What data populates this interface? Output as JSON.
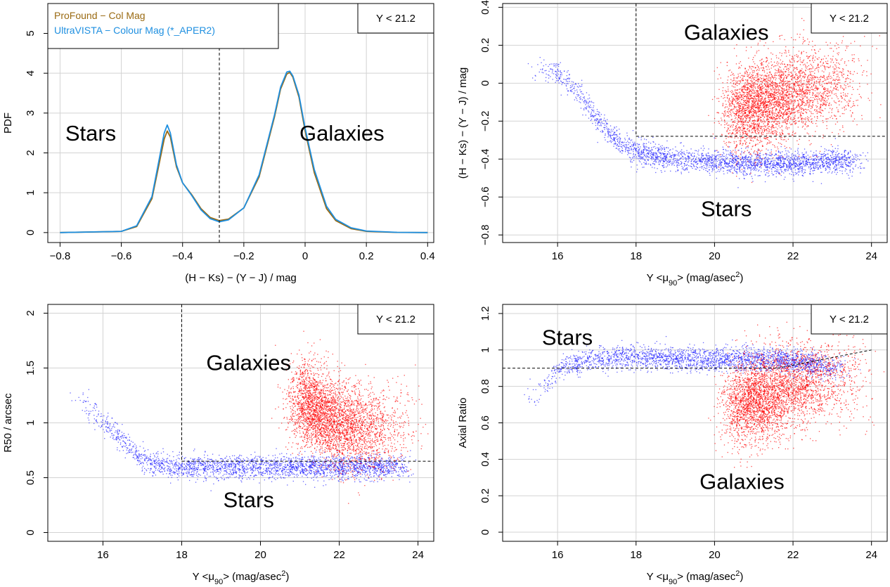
{
  "chart_data": [
    {
      "type": "line",
      "xlabel": "(H − Ks) − (Y − J) / mag",
      "ylabel": "PDF",
      "xlim": [
        -0.84,
        0.42
      ],
      "ylim": [
        -0.25,
        5.75
      ],
      "xticks": [
        -0.8,
        -0.6,
        -0.4,
        -0.2,
        0,
        0.2,
        0.4
      ],
      "yticks": [
        0,
        1,
        2,
        3,
        4,
        5
      ],
      "xtick_labels": [
        "−0.8",
        "−0.6",
        "−0.4",
        "−0.2",
        "0",
        "0.2",
        "0.4"
      ],
      "ytick_labels": [
        "0",
        "1",
        "2",
        "3",
        "4",
        "5"
      ],
      "grid": true,
      "legend": "top-left",
      "condition": "Y < 21.2",
      "cut_x": -0.28,
      "regions": [
        {
          "label": "Stars",
          "x": -0.7,
          "y": 2.5
        },
        {
          "label": "Galaxies",
          "x": 0.12,
          "y": 2.5
        }
      ],
      "series": [
        {
          "name": "ProFound − Col Mag",
          "color": "#9a6a12",
          "x": [
            -0.8,
            -0.6,
            -0.55,
            -0.5,
            -0.48,
            -0.46,
            -0.45,
            -0.44,
            -0.42,
            -0.4,
            -0.37,
            -0.34,
            -0.31,
            -0.28,
            -0.25,
            -0.2,
            -0.15,
            -0.1,
            -0.08,
            -0.06,
            -0.05,
            -0.04,
            -0.02,
            0,
            0.03,
            0.07,
            0.1,
            0.15,
            0.2,
            0.3,
            0.4
          ],
          "y": [
            0,
            0.03,
            0.15,
            0.85,
            1.6,
            2.35,
            2.55,
            2.4,
            1.65,
            1.25,
            0.95,
            0.6,
            0.38,
            0.3,
            0.34,
            0.62,
            1.4,
            2.9,
            3.6,
            3.98,
            4.02,
            3.9,
            3.4,
            2.55,
            1.5,
            0.6,
            0.3,
            0.1,
            0.03,
            0.005,
            0
          ]
        },
        {
          "name": "UltraVISTA − Colour Mag (*_APER2)",
          "color": "#1e8fe0",
          "x": [
            -0.8,
            -0.6,
            -0.55,
            -0.5,
            -0.48,
            -0.46,
            -0.45,
            -0.44,
            -0.42,
            -0.4,
            -0.37,
            -0.34,
            -0.31,
            -0.28,
            -0.25,
            -0.2,
            -0.15,
            -0.1,
            -0.08,
            -0.06,
            -0.05,
            -0.04,
            -0.02,
            0,
            0.03,
            0.07,
            0.1,
            0.15,
            0.2,
            0.3,
            0.4
          ],
          "y": [
            0,
            0.03,
            0.17,
            0.9,
            1.7,
            2.5,
            2.7,
            2.5,
            1.7,
            1.25,
            0.93,
            0.57,
            0.35,
            0.27,
            0.32,
            0.62,
            1.45,
            2.95,
            3.65,
            4.03,
            4.05,
            3.93,
            3.45,
            2.62,
            1.58,
            0.66,
            0.33,
            0.12,
            0.04,
            0.006,
            0
          ]
        }
      ]
    },
    {
      "type": "scatter",
      "xlabel": "Y <μ90> (mag/asec2)",
      "ylabel": "(H − Ks) − (Y − J) / mag",
      "xlim": [
        14.6,
        24.4
      ],
      "ylim": [
        -0.84,
        0.42
      ],
      "xticks": [
        16,
        18,
        20,
        22,
        24
      ],
      "yticks": [
        -0.8,
        -0.6,
        -0.4,
        -0.2,
        0,
        0.2,
        0.4
      ],
      "xtick_labels": [
        "16",
        "18",
        "20",
        "22",
        "24"
      ],
      "ytick_labels": [
        "−0.8",
        "−0.6",
        "−0.4",
        "−0.2",
        "0",
        "0.2",
        "0.4"
      ],
      "grid": true,
      "condition": "Y < 21.2",
      "cuts": {
        "vertical_x": 18,
        "horizontal_y": -0.28
      },
      "regions": [
        {
          "label": "Galaxies",
          "x": 20.3,
          "y": 0.27
        },
        {
          "label": "Stars",
          "x": 20.3,
          "y": -0.66
        }
      ],
      "series": [
        {
          "name": "",
          "color": "#2020ff",
          "points": [
            [
              15.5,
              0.08
            ],
            [
              16,
              0.05
            ],
            [
              16.5,
              -0.05
            ],
            [
              17,
              -0.18
            ],
            [
              17.5,
              -0.3
            ],
            [
              18,
              -0.36
            ],
            [
              19,
              -0.4
            ],
            [
              20,
              -0.41
            ],
            [
              21,
              -0.42
            ],
            [
              22,
              -0.42
            ],
            [
              23,
              -0.41
            ],
            [
              23.5,
              -0.41
            ]
          ]
        },
        {
          "name": "",
          "color": "#ff0000",
          "points": [
            [
              20.5,
              -0.15
            ],
            [
              21.5,
              -0.08
            ],
            [
              22,
              -0.04
            ],
            [
              22.5,
              -0.02
            ],
            [
              23,
              -0.01
            ],
            [
              23.5,
              0
            ],
            [
              24,
              0.01
            ]
          ]
        }
      ]
    },
    {
      "type": "scatter",
      "xlabel": "Y <μ90> (mag/asec2)",
      "ylabel": "R50 / arcsec",
      "xlim": [
        14.6,
        24.4
      ],
      "ylim": [
        -0.08,
        2.08
      ],
      "xticks": [
        16,
        18,
        20,
        22,
        24
      ],
      "yticks": [
        0,
        0.5,
        1,
        1.5,
        2
      ],
      "xtick_labels": [
        "16",
        "18",
        "20",
        "22",
        "24"
      ],
      "ytick_labels": [
        "0",
        "0.5",
        "1",
        "1.5",
        "2"
      ],
      "grid": true,
      "condition": "Y < 21.2",
      "cuts": {
        "vertical_x": 18,
        "horizontal_y": 0.65
      },
      "regions": [
        {
          "label": "Galaxies",
          "x": 19.7,
          "y": 1.55
        },
        {
          "label": "Stars",
          "x": 19.7,
          "y": 0.3
        }
      ],
      "series": [
        {
          "name": "",
          "color": "#2020ff",
          "points": [
            [
              15.5,
              1.2
            ],
            [
              16,
              1.0
            ],
            [
              16.5,
              0.85
            ],
            [
              17,
              0.65
            ],
            [
              17.5,
              0.62
            ],
            [
              18,
              0.6
            ],
            [
              19,
              0.6
            ],
            [
              20,
              0.6
            ],
            [
              21,
              0.6
            ],
            [
              22,
              0.6
            ],
            [
              23,
              0.6
            ],
            [
              23.5,
              0.6
            ]
          ]
        },
        {
          "name": "",
          "color": "#ff0000",
          "points": [
            [
              21,
              1.2
            ],
            [
              21.5,
              1.1
            ],
            [
              22,
              1.0
            ],
            [
              22.5,
              0.95
            ],
            [
              23,
              0.95
            ],
            [
              23.5,
              1.0
            ],
            [
              24,
              1.05
            ]
          ]
        }
      ]
    },
    {
      "type": "scatter",
      "xlabel": "Y <μ90> (mag/asec2)",
      "ylabel": "Axial Ratio",
      "xlim": [
        14.6,
        24.4
      ],
      "ylim": [
        -0.05,
        1.25
      ],
      "xticks": [
        16,
        18,
        20,
        22,
        24
      ],
      "yticks": [
        0,
        0.2,
        0.4,
        0.6,
        0.8,
        1,
        1.2
      ],
      "xtick_labels": [
        "16",
        "18",
        "20",
        "22",
        "24"
      ],
      "ytick_labels": [
        "0",
        "0.2",
        "0.4",
        "0.6",
        "0.8",
        "1",
        "1.2"
      ],
      "grid": true,
      "condition": "Y < 21.2",
      "cuts": {
        "horizontal_y": 0.9,
        "break_x": 21.6,
        "end_point": [
          24,
          1.0
        ]
      },
      "regions": [
        {
          "label": "Stars",
          "x": 15.6,
          "y": 1.07
        },
        {
          "label": "Galaxies",
          "x": 20.7,
          "y": 0.28
        }
      ],
      "series": [
        {
          "name": "",
          "color": "#2020ff",
          "points": [
            [
              15.5,
              0.75
            ],
            [
              16,
              0.9
            ],
            [
              17,
              0.96
            ],
            [
              18,
              0.96
            ],
            [
              19,
              0.95
            ],
            [
              20,
              0.95
            ],
            [
              21,
              0.95
            ],
            [
              22,
              0.94
            ],
            [
              23,
              0.9
            ]
          ]
        },
        {
          "name": "",
          "color": "#ff0000",
          "points": [
            [
              20.5,
              0.7
            ],
            [
              21.5,
              0.75
            ],
            [
              22,
              0.8
            ],
            [
              22.5,
              0.82
            ],
            [
              23,
              0.84
            ],
            [
              23.5,
              0.85
            ],
            [
              24,
              0.82
            ]
          ]
        }
      ]
    }
  ]
}
